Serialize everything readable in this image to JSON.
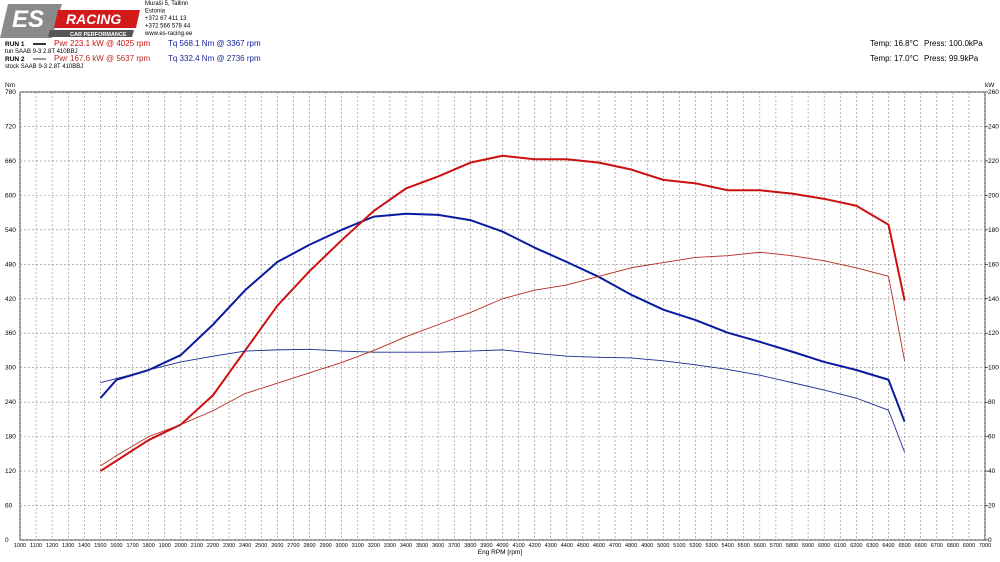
{
  "header": {
    "logo": {
      "brand": "ES",
      "racing": "RACING",
      "tagline": "CAR PERFORMANCE"
    },
    "address": [
      "Muraši 5, Tallinn",
      "Estonia",
      "+372 67 411 13",
      "+372 566 578 44",
      "www.es-racing.ee"
    ]
  },
  "chart_data": {
    "type": "line",
    "runs": [
      {
        "label": "RUN 1",
        "power": "Pwr  223.1 kW @ 4025 rpm",
        "torque": "Tq 568.1 Nm @ 3367 rpm",
        "car": "tun SAAB 9-3 2.8T 410BBJ",
        "temp": "Temp: 16.8°C",
        "press": "Press: 100.0kPa"
      },
      {
        "label": "RUN 2",
        "power": "Pwr  167.6 kW @ 5637 rpm",
        "torque": "Tq 332.4 Nm @ 2736 rpm",
        "car": "stock SAAB 9-3 2.8T 410BBJ",
        "temp": "Temp: 17.0°C",
        "press": "Press: 99.9kPa"
      }
    ],
    "x_label": "Eng RPM [rpm]",
    "y_label": "Nm",
    "y2_label": "kW",
    "x": [
      1500,
      1600,
      1800,
      2000,
      2200,
      2400,
      2600,
      2800,
      3000,
      3200,
      3400,
      3600,
      3800,
      4000,
      4200,
      4400,
      4600,
      4800,
      5000,
      5200,
      5400,
      5600,
      5800,
      6000,
      6200,
      6400,
      6500
    ],
    "series": [
      {
        "color": "#0a1aa0",
        "values": [
          247,
          279,
          296,
          322,
          375,
          435,
          484,
          514,
          540,
          563,
          568,
          566,
          557,
          537,
          509,
          484,
          458,
          427,
          401,
          383,
          361,
          345,
          328,
          310,
          296,
          279,
          206
        ]
      },
      {
        "color": "#cc1010",
        "axis": "y2",
        "values": [
          40,
          46,
          58,
          67,
          84,
          110,
          136,
          156,
          174,
          191,
          204,
          211,
          219,
          223,
          221,
          221,
          219,
          215,
          209,
          207,
          203,
          203,
          201,
          198,
          194,
          183,
          139
        ]
      },
      {
        "color": "#1a2a90",
        "values": [
          274,
          281,
          296,
          310,
          320,
          329,
          331,
          332,
          329,
          327,
          327,
          327,
          329,
          331,
          325,
          320,
          318,
          317,
          312,
          305,
          297,
          287,
          274,
          261,
          247,
          226,
          153
        ]
      },
      {
        "color": "#b82a20",
        "axis": "y2",
        "values": [
          43,
          49,
          60,
          67,
          75,
          85,
          91,
          97,
          103,
          110,
          118,
          125,
          132,
          140,
          145,
          148,
          153,
          158,
          161,
          164,
          165,
          167,
          165,
          162,
          158,
          153,
          104
        ]
      }
    ],
    "xlim": [
      1000,
      7000
    ],
    "ylim": [
      0,
      780
    ],
    "y2lim": [
      0,
      260
    ],
    "xticks": [
      1000,
      1100,
      1200,
      1300,
      1400,
      1500,
      1600,
      1700,
      1800,
      1900,
      2000,
      2100,
      2200,
      2300,
      2400,
      2500,
      2600,
      2700,
      2800,
      2900,
      3000,
      3100,
      3200,
      3300,
      3400,
      3500,
      3600,
      3700,
      3800,
      3900,
      4000,
      4100,
      4200,
      4300,
      4400,
      4500,
      4600,
      4700,
      4800,
      4900,
      5000,
      5100,
      5200,
      5300,
      5400,
      5500,
      5600,
      5700,
      5800,
      5900,
      6000,
      6100,
      6200,
      6300,
      6400,
      6500,
      6600,
      6700,
      6800,
      6900,
      7000
    ],
    "yticks": [
      0,
      60,
      120,
      180,
      240,
      300,
      360,
      420,
      480,
      540,
      600,
      660,
      720,
      780
    ],
    "y2ticks": [
      0,
      20,
      40,
      60,
      80,
      100,
      120,
      140,
      160,
      180,
      200,
      220,
      240,
      260
    ],
    "grid": true
  }
}
